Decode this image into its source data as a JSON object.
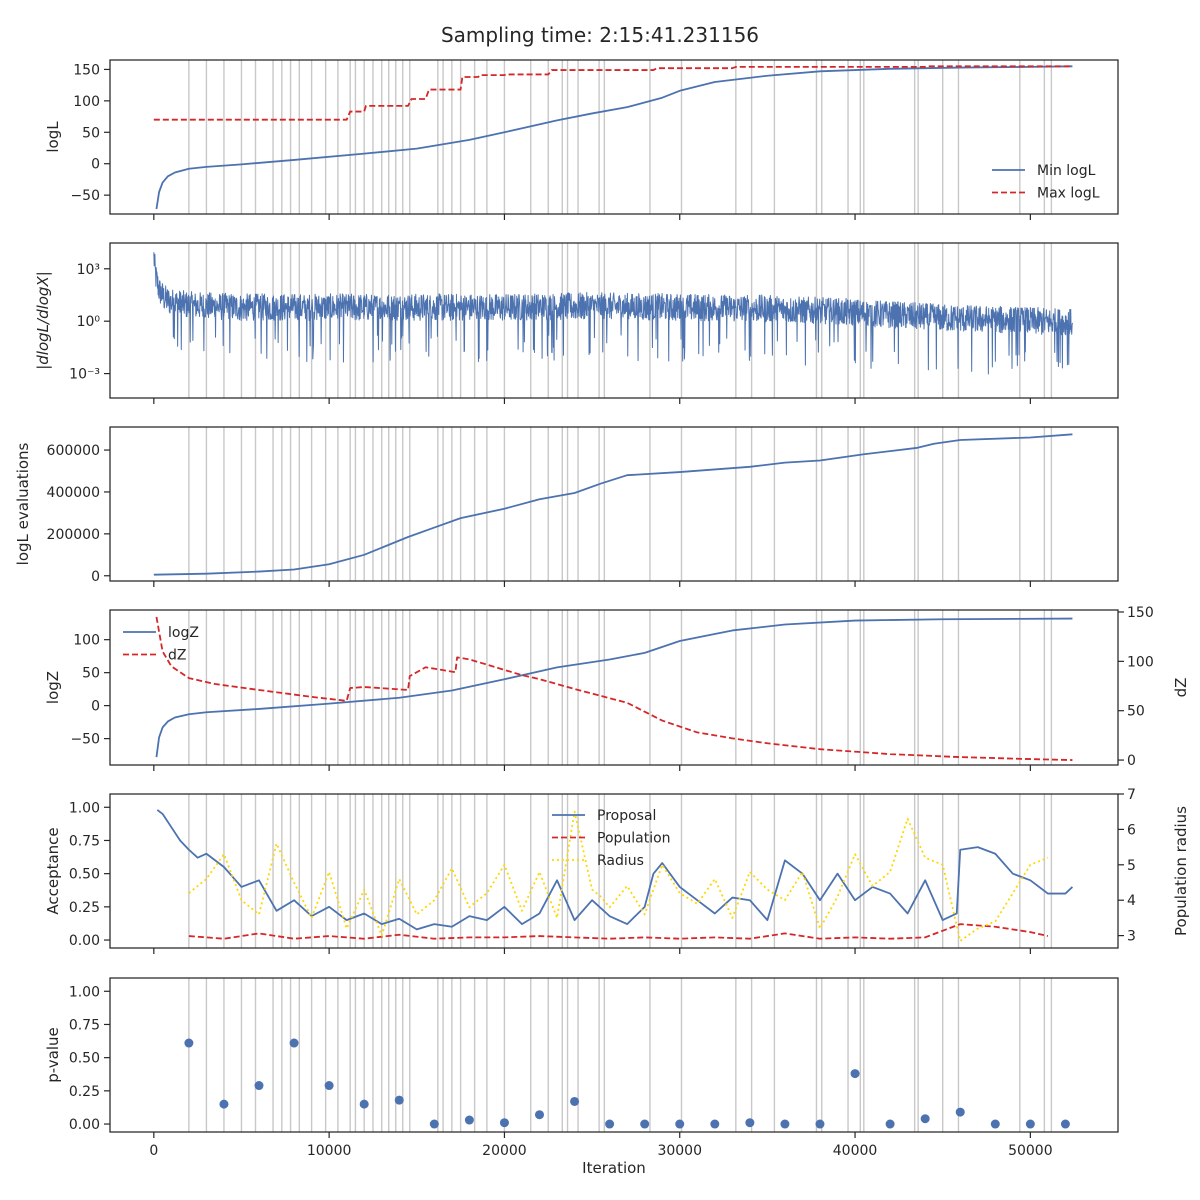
{
  "figure": {
    "title": "Sampling time: 2:15:41.231156"
  },
  "colors": {
    "blue": "#4c72b0",
    "red": "#d62728",
    "yellow": "#ffd700",
    "vline": "#c8c8c8",
    "axis": "#262626"
  },
  "chart_data": [
    {
      "id": "logl",
      "type": "line",
      "ylabel": "logL",
      "xlim": [
        -2500,
        55000
      ],
      "ylim": [
        -80,
        165
      ],
      "yticks": [
        -50,
        0,
        50,
        100,
        150
      ],
      "ytick_labels": [
        "−50",
        "0",
        "50",
        "100",
        "150"
      ],
      "legend": {
        "placement": "lower-right",
        "entries": [
          "Min logL",
          "Max logL"
        ]
      },
      "series": [
        {
          "name": "Min logL",
          "style": "solid",
          "color": "#4c72b0",
          "x": [
            150,
            300,
            500,
            800,
            1200,
            2000,
            3000,
            5000,
            8000,
            12000,
            15000,
            18000,
            20000,
            23000,
            25000,
            27000,
            29000,
            30000,
            32000,
            35000,
            38000,
            42000,
            46000,
            50000,
            52400
          ],
          "y": [
            -72,
            -45,
            -30,
            -20,
            -14,
            -8,
            -5,
            -1,
            6,
            16,
            24,
            38,
            50,
            69,
            80,
            90,
            105,
            116,
            130,
            140,
            147,
            151,
            153,
            154,
            155
          ]
        },
        {
          "name": "Max logL",
          "style": "dashed",
          "color": "#d62728",
          "x": [
            0,
            11000,
            11200,
            12000,
            12100,
            14500,
            14700,
            15500,
            15700,
            17500,
            17600,
            18500,
            18600,
            20000,
            20100,
            22500,
            22700,
            28500,
            28700,
            33000,
            33200,
            44000,
            44200,
            52400
          ],
          "y": [
            70,
            70,
            83,
            83,
            92,
            92,
            103,
            103,
            118,
            118,
            138,
            138,
            141,
            141,
            142,
            142,
            149,
            149,
            152,
            152,
            154,
            154,
            155,
            155
          ]
        }
      ]
    },
    {
      "id": "dlogl",
      "type": "line",
      "ylabel": "|dlogL/dlogX|",
      "yscale": "log",
      "xlim": [
        -2500,
        55000
      ],
      "ylim": [
        4e-05,
        30000
      ],
      "yticks": [
        0.001,
        1,
        1000
      ],
      "ytick_labels": [
        "10⁻³",
        "10⁰",
        "10³"
      ],
      "series": [
        {
          "name": "|dlogL/dlogX|",
          "style": "solid",
          "color": "#4c72b0",
          "x": [
            0,
            100,
            300,
            600,
            1000,
            2000,
            5000,
            10000,
            15000,
            20000,
            25000,
            30000,
            35000,
            40000,
            45000,
            50000,
            52400
          ],
          "y": [
            5000,
            400,
            60,
            20,
            12,
            8,
            6,
            6,
            6,
            6,
            7,
            6,
            5,
            3,
            1.5,
            1,
            0.8
          ]
        }
      ]
    },
    {
      "id": "evals",
      "type": "line",
      "ylabel": "logL evaluations",
      "xlim": [
        -2500,
        55000
      ],
      "ylim": [
        -25000,
        710000
      ],
      "yticks": [
        0,
        200000,
        400000,
        600000
      ],
      "ytick_labels": [
        "0",
        "200000",
        "400000",
        "600000"
      ],
      "series": [
        {
          "name": "logL evaluations",
          "style": "solid",
          "color": "#4c72b0",
          "x": [
            0,
            3000,
            6000,
            8000,
            10000,
            12000,
            14500,
            16000,
            17500,
            20000,
            22000,
            24000,
            25500,
            27000,
            30000,
            34000,
            36000,
            38000,
            40500,
            42000,
            43500,
            44500,
            46000,
            50000,
            52400
          ],
          "y": [
            5000,
            10000,
            20000,
            30000,
            55000,
            100000,
            185000,
            230000,
            275000,
            320000,
            365000,
            395000,
            440000,
            480000,
            495000,
            520000,
            540000,
            550000,
            580000,
            595000,
            610000,
            630000,
            648000,
            660000,
            675000
          ]
        }
      ]
    },
    {
      "id": "logz",
      "type": "line",
      "ylabel": "logZ",
      "y2label": "dZ",
      "xlim": [
        -2500,
        55000
      ],
      "ylim": [
        -90,
        145
      ],
      "yticks": [
        -50,
        0,
        50,
        100
      ],
      "ytick_labels": [
        "−50",
        "0",
        "50",
        "100"
      ],
      "y2lim": [
        -5,
        152
      ],
      "y2ticks": [
        0,
        50,
        100,
        150
      ],
      "y2tick_labels": [
        "0",
        "50",
        "100",
        "150"
      ],
      "legend": {
        "placement": "upper-left",
        "entries": [
          "logZ",
          "dZ"
        ]
      },
      "series": [
        {
          "name": "logZ",
          "style": "solid",
          "color": "#4c72b0",
          "axis": "left",
          "x": [
            150,
            300,
            500,
            800,
            1200,
            2000,
            3000,
            6000,
            10000,
            14000,
            17000,
            20000,
            23000,
            26000,
            28000,
            30000,
            33000,
            36000,
            40000,
            45000,
            52400
          ],
          "y": [
            -78,
            -48,
            -33,
            -24,
            -18,
            -13,
            -10,
            -5,
            3,
            12,
            23,
            40,
            58,
            70,
            80,
            98,
            114,
            123,
            129,
            131,
            132
          ]
        },
        {
          "name": "dZ",
          "style": "dashed",
          "color": "#d62728",
          "axis": "right",
          "x": [
            150,
            500,
            1000,
            2000,
            3500,
            6000,
            9000,
            11000,
            11200,
            12000,
            14500,
            14600,
            15500,
            17200,
            17300,
            18000,
            21000,
            22000,
            24000,
            27000,
            29000,
            31000,
            33000,
            35000,
            38000,
            42000,
            46000,
            50000,
            52400
          ],
          "y": [
            145,
            110,
            95,
            83,
            77,
            71,
            64,
            60,
            73,
            74,
            71,
            85,
            94,
            89,
            104,
            102,
            86,
            82,
            72,
            58,
            40,
            28,
            22,
            17,
            11,
            6,
            3,
            1,
            0
          ]
        }
      ]
    },
    {
      "id": "acceptance",
      "type": "line",
      "ylabel": "Acceptance",
      "y2label": "Population radius",
      "xlim": [
        -2500,
        55000
      ],
      "ylim": [
        -0.06,
        1.1
      ],
      "yticks": [
        0,
        0.25,
        0.5,
        0.75,
        1.0
      ],
      "ytick_labels": [
        "0.00",
        "0.25",
        "0.50",
        "0.75",
        "1.00"
      ],
      "y2lim": [
        2.65,
        7.0
      ],
      "y2ticks": [
        3,
        4,
        5,
        6,
        7
      ],
      "y2tick_labels": [
        "3",
        "4",
        "5",
        "6",
        "7"
      ],
      "legend": {
        "placement": "upper-center",
        "entries": [
          "Proposal",
          "Population",
          "Radius"
        ]
      },
      "series": [
        {
          "name": "Proposal",
          "style": "solid",
          "color": "#4c72b0",
          "axis": "left",
          "x": [
            200,
            500,
            1000,
            1500,
            2000,
            2500,
            3000,
            4000,
            5000,
            6000,
            7000,
            8000,
            9000,
            10000,
            11000,
            12000,
            13000,
            14000,
            15000,
            16000,
            17000,
            18000,
            19000,
            20000,
            21000,
            22000,
            23000,
            24000,
            25000,
            26000,
            27000,
            28000,
            28500,
            29000,
            30000,
            31000,
            32000,
            33000,
            34000,
            35000,
            36000,
            37000,
            38000,
            39000,
            40000,
            41000,
            42000,
            43000,
            44000,
            45000,
            45800,
            46000,
            47000,
            48000,
            49000,
            50000,
            51000,
            52000,
            52400
          ],
          "y": [
            0.98,
            0.95,
            0.85,
            0.75,
            0.68,
            0.62,
            0.65,
            0.55,
            0.4,
            0.45,
            0.22,
            0.3,
            0.18,
            0.25,
            0.15,
            0.2,
            0.12,
            0.16,
            0.08,
            0.12,
            0.1,
            0.18,
            0.15,
            0.25,
            0.12,
            0.2,
            0.45,
            0.15,
            0.3,
            0.18,
            0.12,
            0.25,
            0.5,
            0.58,
            0.4,
            0.3,
            0.2,
            0.32,
            0.3,
            0.15,
            0.6,
            0.5,
            0.3,
            0.5,
            0.3,
            0.4,
            0.35,
            0.2,
            0.45,
            0.15,
            0.2,
            0.68,
            0.7,
            0.65,
            0.5,
            0.45,
            0.35,
            0.35,
            0.4
          ]
        },
        {
          "name": "Population",
          "style": "dashed",
          "color": "#d62728",
          "axis": "left",
          "x": [
            2000,
            4000,
            6000,
            8000,
            10000,
            12000,
            14000,
            16000,
            18000,
            20000,
            22000,
            24000,
            26000,
            28000,
            30000,
            32000,
            34000,
            36000,
            38000,
            40000,
            42000,
            44000,
            46000,
            48000,
            50000,
            51000
          ],
          "y": [
            0.03,
            0.01,
            0.05,
            0.01,
            0.03,
            0.01,
            0.04,
            0.01,
            0.02,
            0.02,
            0.03,
            0.02,
            0.01,
            0.02,
            0.01,
            0.02,
            0.01,
            0.05,
            0.01,
            0.02,
            0.01,
            0.02,
            0.12,
            0.1,
            0.06,
            0.03
          ]
        },
        {
          "name": "Radius",
          "style": "dotted",
          "color": "#ffd700",
          "axis": "right",
          "x": [
            2000,
            3000,
            4000,
            5000,
            6000,
            7000,
            8000,
            9000,
            10000,
            11000,
            12000,
            13000,
            14000,
            15000,
            16000,
            17000,
            18000,
            19000,
            20000,
            21000,
            22000,
            23000,
            24000,
            25000,
            25500,
            26000,
            27000,
            28000,
            29000,
            30000,
            31000,
            32000,
            33000,
            34000,
            35000,
            36000,
            37000,
            38000,
            39000,
            40000,
            41000,
            42000,
            43000,
            44000,
            45000,
            46000,
            47000,
            48000,
            49000,
            50000,
            51000
          ],
          "y": [
            4.2,
            4.6,
            5.3,
            4.0,
            3.6,
            5.6,
            4.5,
            3.5,
            4.8,
            3.2,
            4.3,
            3.0,
            4.6,
            3.6,
            4.0,
            4.9,
            3.8,
            4.2,
            5.0,
            3.7,
            4.8,
            3.5,
            6.5,
            4.3,
            4.1,
            3.8,
            4.4,
            3.6,
            5.0,
            4.2,
            3.9,
            4.6,
            3.5,
            4.8,
            4.3,
            4.0,
            4.8,
            3.2,
            4.1,
            5.3,
            4.4,
            4.8,
            6.3,
            5.2,
            5.0,
            2.85,
            3.2,
            3.4,
            4.2,
            5.0,
            5.2
          ]
        }
      ]
    },
    {
      "id": "pvalue",
      "type": "scatter",
      "ylabel": "p-value",
      "xlabel": "Iteration",
      "xlim": [
        -2500,
        55000
      ],
      "ylim": [
        -0.06,
        1.1
      ],
      "yticks": [
        0,
        0.25,
        0.5,
        0.75,
        1.0
      ],
      "ytick_labels": [
        "0.00",
        "0.25",
        "0.50",
        "0.75",
        "1.00"
      ],
      "xticks": [
        0,
        10000,
        20000,
        30000,
        40000,
        50000
      ],
      "xtick_labels": [
        "0",
        "10000",
        "20000",
        "30000",
        "40000",
        "50000"
      ],
      "series": [
        {
          "name": "p-value",
          "style": "marker",
          "color": "#4c72b0",
          "x": [
            2000,
            4000,
            6000,
            8000,
            10000,
            12000,
            14000,
            16000,
            18000,
            20000,
            22000,
            24000,
            26000,
            28000,
            30000,
            32000,
            34000,
            36000,
            38000,
            40000,
            42000,
            44000,
            46000,
            48000,
            50000,
            52000
          ],
          "y": [
            0.61,
            0.15,
            0.29,
            0.61,
            0.29,
            0.15,
            0.18,
            0.0,
            0.03,
            0.01,
            0.07,
            0.17,
            0.0,
            0.0,
            0.0,
            0.0,
            0.01,
            0.0,
            0.0,
            0.38,
            0.0,
            0.04,
            0.09,
            0.0,
            0.0,
            0.0
          ]
        }
      ]
    }
  ],
  "vlines_x": [
    2000,
    3000,
    4000,
    5000,
    5800,
    6800,
    7300,
    7800,
    8300,
    9000,
    9800,
    10500,
    11200,
    11500,
    12000,
    12500,
    13000,
    13400,
    13800,
    14200,
    14600,
    16200,
    16500,
    17000,
    17500,
    18300,
    19000,
    20000,
    21500,
    22500,
    23300,
    23600,
    24200,
    25400,
    25700,
    28300,
    30100,
    33200,
    34100,
    35400,
    37800,
    38100,
    39600,
    40300,
    40500,
    43400,
    43600,
    45000,
    45900,
    49400,
    50800,
    51200
  ]
}
